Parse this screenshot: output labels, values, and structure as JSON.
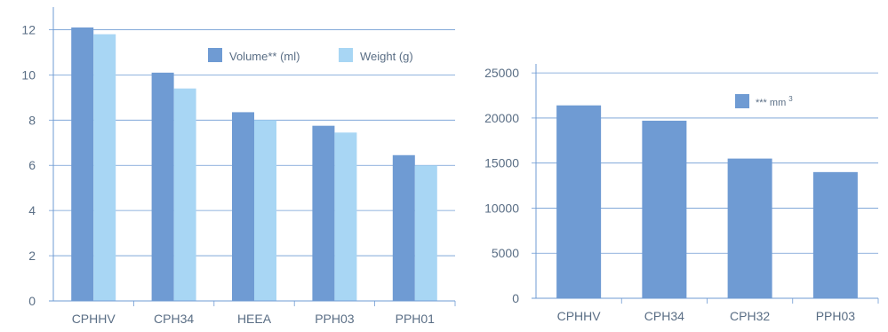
{
  "chart_data": [
    {
      "type": "bar",
      "categories": [
        "CPHHV",
        "CPH34",
        "HEEA",
        "PPH03",
        "PPH01"
      ],
      "series": [
        {
          "name": "Volume** (ml)",
          "values": [
            12.1,
            10.1,
            8.35,
            7.75,
            6.45
          ],
          "color": "#6f9bd3"
        },
        {
          "name": "Weight (g)",
          "values": [
            11.8,
            9.4,
            8.0,
            7.45,
            6.0
          ],
          "color": "#a8d6f4"
        }
      ],
      "ylim": [
        0,
        13
      ],
      "yticks": [
        "0",
        "2",
        "4",
        "6",
        "8",
        "10",
        "12"
      ],
      "grid": true,
      "legend_position": "top-right"
    },
    {
      "type": "bar",
      "categories": [
        "CPHHV",
        "CPH34",
        "CPH32",
        "PPH03"
      ],
      "series": [
        {
          "name_prefix": "***",
          "name_unit": "mm",
          "name_exponent": "3",
          "values": [
            21400,
            19700,
            15500,
            14000
          ],
          "color": "#6f9bd3"
        }
      ],
      "ylim": [
        0,
        26000
      ],
      "yticks": [
        "0",
        "5000",
        "10000",
        "15000",
        "20000",
        "25000"
      ],
      "grid": true,
      "legend_position": "top-right"
    }
  ],
  "colors": {
    "axis": "#6f9bd3",
    "grid": "#6f9bd3",
    "text": "#5a6e85"
  }
}
